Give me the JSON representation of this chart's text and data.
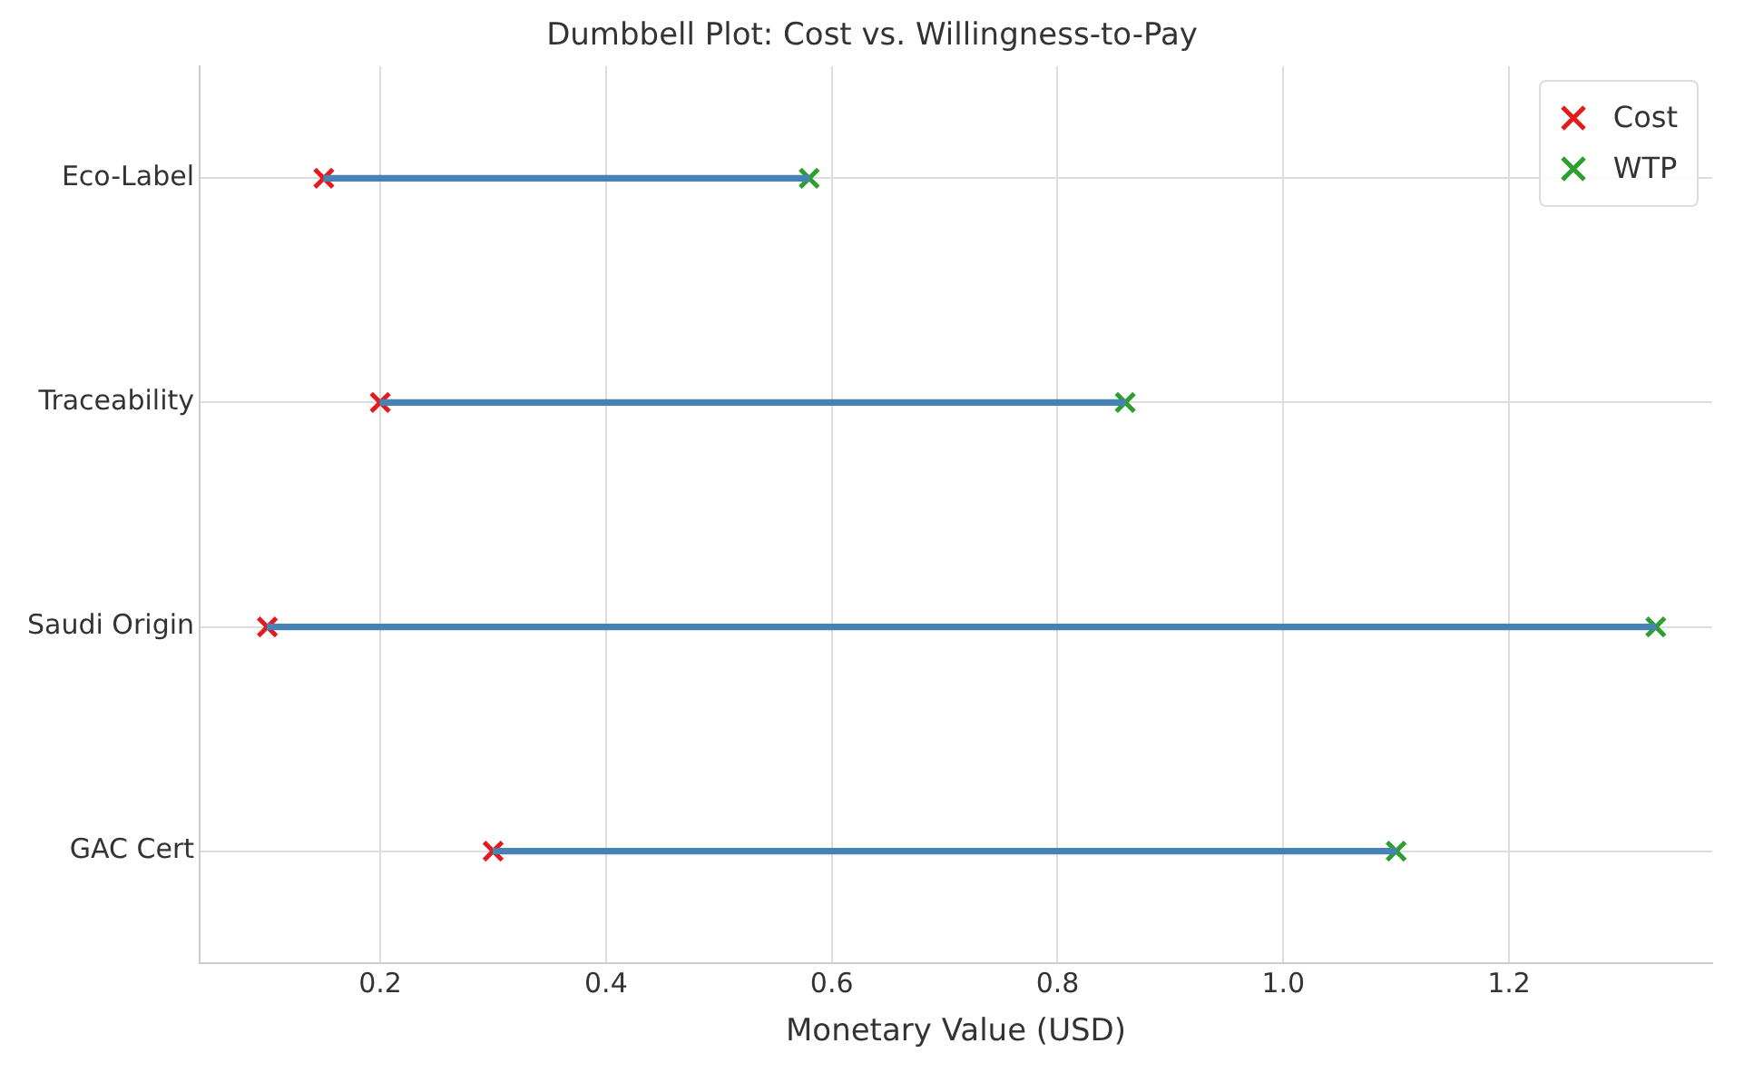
{
  "chart_data": {
    "type": "bar",
    "orientation": "horizontal",
    "title": "Dumbbell Plot: Cost vs. Willingness-to-Pay",
    "xlabel": "Monetary Value (USD)",
    "categories": [
      "Eco-Label",
      "Traceability",
      "Saudi Origin",
      "GAC Cert"
    ],
    "series": [
      {
        "type": "bar",
        "color": "#4682b4",
        "base": [
          0.15,
          0.2,
          0.1,
          0.3
        ],
        "values": [
          0.43,
          0.66,
          1.23,
          0.8
        ]
      },
      {
        "type": "scatter",
        "name": "Cost",
        "color": "#e41a1c",
        "values": [
          0.15,
          0.2,
          0.1,
          0.3
        ]
      },
      {
        "type": "scatter",
        "name": "WTP",
        "color": "#2ca02c",
        "values": [
          0.58,
          0.86,
          1.33,
          1.1
        ]
      }
    ],
    "xlim": [
      0.04,
      1.38
    ],
    "xticks": [
      0.2,
      0.4,
      0.6,
      0.8,
      {
        "value": 1,
        "label": "1.0"
      },
      1.2
    ],
    "grid": true,
    "legend": "top right",
    "marker": "cross"
  }
}
